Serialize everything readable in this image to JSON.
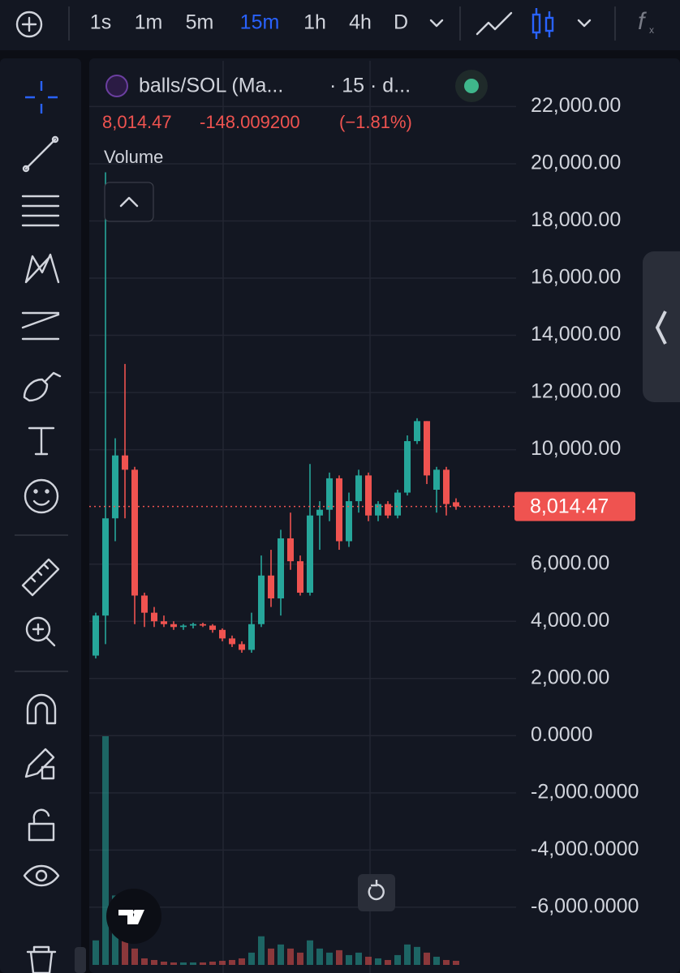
{
  "toolbar": {
    "timeframes": [
      "1s",
      "1m",
      "5m",
      "15m",
      "1h",
      "4h",
      "D"
    ],
    "active": "15m",
    "fx": "f"
  },
  "legend": {
    "symbol": "balls/SOL (Ma...",
    "interval": "· 15 · d...",
    "last": "8,014.47",
    "change": "-148.009200",
    "change_pct": "(−1.81%)",
    "volume": "Volume"
  },
  "chart_data": {
    "type": "candlestick",
    "ylim": [
      -8300,
      23600
    ],
    "yticks": [
      {
        "value": 22000,
        "label": "22,000.00"
      },
      {
        "value": 20000,
        "label": "20,000.00"
      },
      {
        "value": 18000,
        "label": "18,000.00"
      },
      {
        "value": 16000,
        "label": "16,000.00"
      },
      {
        "value": 14000,
        "label": "14,000.00"
      },
      {
        "value": 12000,
        "label": "12,000.00"
      },
      {
        "value": 10000,
        "label": "10,000.00"
      },
      {
        "value": 6000,
        "label": "6,000.00"
      },
      {
        "value": 4000,
        "label": "4,000.00"
      },
      {
        "value": 2000,
        "label": "2,000.00"
      },
      {
        "value": 0,
        "label": "0.0000"
      },
      {
        "value": -2000,
        "label": "-2,000.0000"
      },
      {
        "value": -4000,
        "label": "-4,000.0000"
      },
      {
        "value": -6000,
        "label": "-6,000.0000"
      }
    ],
    "last_price": {
      "value": 8014.47,
      "label": "8,014.47"
    },
    "up_color": "#26a69a",
    "down_color": "#ef5350",
    "grid": true,
    "open": [
      2800,
      4200,
      7600,
      9800,
      9300,
      4900,
      4300,
      4000,
      3900,
      3800,
      3850,
      3900,
      3850,
      3700,
      3400,
      3200,
      3000,
      3900,
      5600,
      4800,
      6900,
      6100,
      5000,
      7700,
      7900,
      9000,
      6800,
      8200,
      9100,
      7700,
      8100,
      7700,
      8500,
      10300,
      11000,
      8600,
      9300,
      8162.48
    ],
    "high": [
      4300,
      19700,
      10400,
      13000,
      9400,
      5000,
      4500,
      4200,
      4000,
      3900,
      3950,
      3950,
      3900,
      3750,
      3500,
      3300,
      4300,
      6300,
      6500,
      7200,
      7800,
      6300,
      9500,
      8200,
      9200,
      9100,
      8500,
      9300,
      9200,
      8200,
      8200,
      8600,
      10500,
      11100,
      11000,
      9400,
      9400,
      8300
    ],
    "low": [
      2700,
      3200,
      6800,
      7600,
      3900,
      3800,
      3800,
      3800,
      3700,
      3700,
      3750,
      3800,
      3600,
      3300,
      3100,
      2900,
      2900,
      3800,
      4500,
      4200,
      5800,
      4900,
      4900,
      6500,
      7500,
      6500,
      6600,
      7800,
      7500,
      7500,
      7600,
      7600,
      8400,
      10200,
      8800,
      7800,
      7700,
      7900
    ],
    "close": [
      4200,
      7600,
      9800,
      9300,
      4900,
      4300,
      4000,
      3900,
      3800,
      3850,
      3900,
      3850,
      3700,
      3400,
      3200,
      3000,
      3900,
      5600,
      4800,
      6900,
      6100,
      5000,
      7700,
      7900,
      9000,
      6800,
      8200,
      9100,
      7700,
      8100,
      7700,
      8500,
      10300,
      11000,
      9100,
      9300,
      8100,
      8014.47
    ],
    "volume": [
      30,
      280,
      85,
      40,
      20,
      8,
      6,
      4,
      3,
      3,
      3,
      3,
      4,
      5,
      6,
      8,
      15,
      35,
      20,
      25,
      20,
      15,
      30,
      20,
      15,
      18,
      12,
      15,
      10,
      8,
      6,
      12,
      25,
      22,
      15,
      10,
      6,
      5
    ]
  }
}
